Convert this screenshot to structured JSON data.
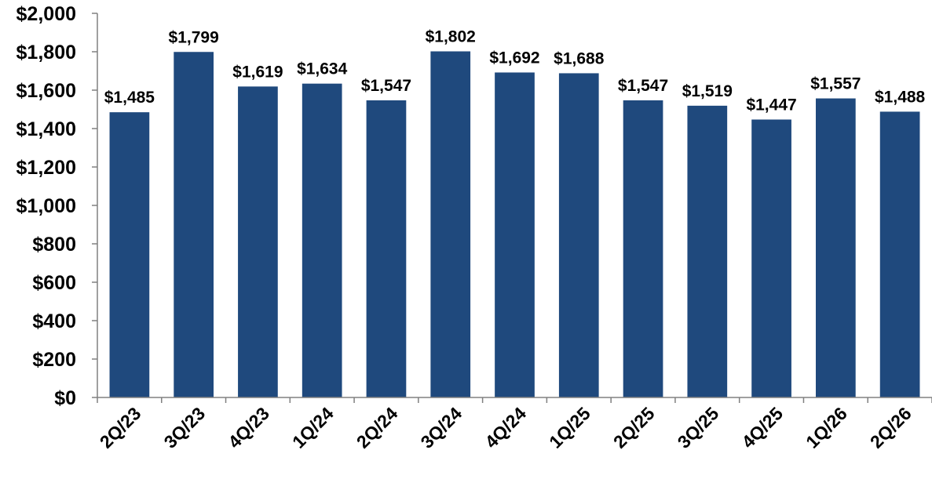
{
  "chart_data": {
    "type": "bar",
    "title": "",
    "xlabel": "",
    "ylabel": "",
    "categories": [
      "2Q/23",
      "3Q/23",
      "4Q/23",
      "1Q/24",
      "2Q/24",
      "3Q/24",
      "4Q/24",
      "1Q/25",
      "2Q/25",
      "3Q/25",
      "4Q/25",
      "1Q/26",
      "2Q/26"
    ],
    "values": [
      1485,
      1799,
      1619,
      1634,
      1547,
      1802,
      1692,
      1688,
      1547,
      1519,
      1447,
      1557,
      1488
    ],
    "data_labels": [
      "$1,485",
      "$1,799",
      "$1,619",
      "$1,634",
      "$1,547",
      "$1,802",
      "$1,692",
      "$1,688",
      "$1,547",
      "$1,519",
      "$1,447",
      "$1,557",
      "$1,488"
    ],
    "ylim": [
      0,
      2000
    ],
    "y_ticks": [
      0,
      200,
      400,
      600,
      800,
      1000,
      1200,
      1400,
      1600,
      1800,
      2000
    ],
    "y_tick_labels": [
      "$0",
      "$200",
      "$400",
      "$600",
      "$800",
      "$1,000",
      "$1,200",
      "$1,400",
      "$1,600",
      "$1,800",
      "$2,000"
    ],
    "grid": false,
    "legend": "none",
    "bar_color": "#1f497d",
    "axis_color": "#808080"
  }
}
